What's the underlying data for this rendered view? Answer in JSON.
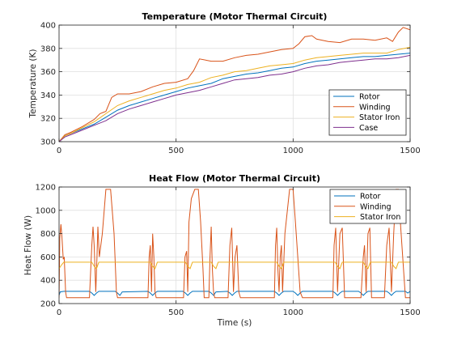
{
  "chart_data": [
    {
      "type": "line",
      "title": "Temperature (Motor Thermal Circuit)",
      "xlabel": "",
      "ylabel": "Temperature (K)",
      "xlim": [
        0,
        1500
      ],
      "ylim": [
        300,
        400
      ],
      "xticks": [
        0,
        500,
        1000,
        1500
      ],
      "yticks": [
        300,
        320,
        340,
        360,
        380,
        400
      ],
      "grid": true,
      "legend_position": "bottom-right",
      "series": [
        {
          "name": "Rotor",
          "color": "#0072BD",
          "x": [
            0,
            25,
            50,
            100,
            150,
            200,
            250,
            300,
            350,
            400,
            450,
            500,
            550,
            600,
            650,
            700,
            750,
            800,
            850,
            900,
            950,
            1000,
            1050,
            1100,
            1150,
            1200,
            1250,
            1300,
            1350,
            1400,
            1450,
            1500
          ],
          "y": [
            300,
            305,
            307,
            311,
            315,
            321,
            327,
            331,
            334,
            337,
            340,
            343,
            346,
            348,
            350,
            354,
            356,
            358,
            359,
            361,
            363,
            364,
            367,
            369,
            370,
            371,
            372,
            373,
            373,
            374,
            375,
            376
          ]
        },
        {
          "name": "Winding",
          "color": "#D95319",
          "x": [
            0,
            25,
            50,
            100,
            150,
            175,
            200,
            225,
            250,
            300,
            350,
            400,
            450,
            500,
            550,
            575,
            600,
            650,
            700,
            750,
            800,
            850,
            900,
            950,
            1000,
            1025,
            1050,
            1080,
            1100,
            1150,
            1200,
            1250,
            1300,
            1350,
            1400,
            1425,
            1450,
            1470,
            1500
          ],
          "y": [
            300,
            306,
            308,
            313,
            319,
            324,
            326,
            338,
            341,
            341,
            343,
            347,
            350,
            351,
            354,
            361,
            371,
            369,
            369,
            372,
            374,
            375,
            377,
            379,
            380,
            384,
            390,
            391,
            388,
            386,
            385,
            388,
            388,
            387,
            389,
            386,
            394,
            398,
            396
          ]
        },
        {
          "name": "Stator Iron",
          "color": "#EDB120",
          "x": [
            0,
            25,
            50,
            100,
            150,
            200,
            250,
            300,
            350,
            400,
            450,
            500,
            550,
            600,
            650,
            700,
            750,
            800,
            850,
            900,
            950,
            1000,
            1050,
            1100,
            1150,
            1200,
            1250,
            1300,
            1350,
            1400,
            1450,
            1500
          ],
          "y": [
            300,
            305,
            307,
            312,
            317,
            324,
            331,
            335,
            338,
            341,
            344,
            346,
            349,
            351,
            355,
            357,
            360,
            361,
            363,
            365,
            366,
            367,
            370,
            372,
            373,
            374,
            375,
            376,
            376,
            376,
            379,
            381
          ]
        },
        {
          "name": "Case",
          "color": "#7E2F8E",
          "x": [
            0,
            25,
            50,
            100,
            150,
            200,
            250,
            300,
            350,
            400,
            450,
            500,
            550,
            600,
            650,
            700,
            750,
            800,
            850,
            900,
            950,
            1000,
            1050,
            1100,
            1150,
            1200,
            1250,
            1300,
            1350,
            1400,
            1450,
            1500
          ],
          "y": [
            300,
            304,
            306,
            310,
            314,
            318,
            324,
            328,
            331,
            334,
            337,
            340,
            342,
            344,
            347,
            350,
            353,
            354,
            355,
            357,
            358,
            360,
            363,
            365,
            366,
            368,
            369,
            370,
            371,
            371,
            372,
            374
          ]
        }
      ]
    },
    {
      "type": "line",
      "title": "Heat Flow (Motor Thermal Circuit)",
      "xlabel": "Time (s)",
      "ylabel": "Heat Flow (W)",
      "xlim": [
        0,
        1500
      ],
      "ylim": [
        200,
        1200
      ],
      "xticks": [
        0,
        500,
        1000,
        1500
      ],
      "yticks": [
        200,
        400,
        600,
        800,
        1000,
        1200
      ],
      "grid": true,
      "legend_position": "top-right",
      "series": [
        {
          "name": "Rotor",
          "color": "#0072BD",
          "x": [
            0,
            5,
            20,
            30,
            130,
            140,
            150,
            160,
            170,
            240,
            250,
            260,
            270,
            380,
            390,
            400,
            410,
            420,
            530,
            540,
            550,
            560,
            570,
            640,
            650,
            660,
            670,
            720,
            730,
            740,
            750,
            760,
            920,
            930,
            940,
            950,
            960,
            1000,
            1010,
            1020,
            1030,
            1040,
            1170,
            1180,
            1190,
            1200,
            1210,
            1280,
            1290,
            1300,
            1310,
            1320,
            1400,
            1410,
            1420,
            1430,
            1440,
            1480,
            1490,
            1500
          ],
          "y": [
            270,
            300,
            305,
            305,
            305,
            290,
            270,
            290,
            305,
            305,
            290,
            270,
            300,
            305,
            290,
            270,
            290,
            305,
            305,
            290,
            270,
            290,
            305,
            305,
            290,
            270,
            300,
            305,
            290,
            270,
            290,
            305,
            305,
            290,
            270,
            290,
            305,
            305,
            290,
            270,
            290,
            305,
            305,
            290,
            270,
            290,
            305,
            305,
            290,
            270,
            290,
            305,
            305,
            290,
            270,
            290,
            305,
            305,
            290,
            305
          ]
        },
        {
          "name": "Winding",
          "color": "#D95319",
          "x": [
            0,
            3,
            8,
            12,
            18,
            22,
            28,
            32,
            130,
            140,
            145,
            150,
            157,
            162,
            166,
            172,
            185,
            200,
            220,
            235,
            245,
            250,
            255,
            260,
            380,
            385,
            390,
            395,
            400,
            405,
            410,
            415,
            425,
            532,
            538,
            545,
            550,
            555,
            565,
            580,
            595,
            605,
            615,
            620,
            640,
            645,
            650,
            655,
            660,
            665,
            675,
            722,
            730,
            738,
            745,
            752,
            760,
            768,
            775,
            920,
            925,
            930,
            935,
            940,
            945,
            950,
            955,
            965,
            985,
            1000,
            1010,
            1020,
            1030,
            1040,
            1050,
            1170,
            1175,
            1182,
            1190,
            1200,
            1210,
            1220,
            1290,
            1300,
            1305,
            1312,
            1320,
            1328,
            1335,
            1390,
            1400,
            1410,
            1420,
            1430,
            1440,
            1450,
            1460,
            1480,
            1490,
            1500
          ],
          "y": [
            250,
            760,
            880,
            780,
            580,
            600,
            300,
            250,
            250,
            700,
            860,
            700,
            300,
            600,
            860,
            600,
            800,
            1180,
            1180,
            800,
            300,
            250,
            250,
            250,
            250,
            600,
            700,
            300,
            800,
            600,
            300,
            250,
            250,
            250,
            600,
            650,
            300,
            900,
            1100,
            1180,
            1180,
            900,
            500,
            250,
            250,
            600,
            860,
            500,
            300,
            250,
            250,
            250,
            700,
            850,
            300,
            600,
            700,
            300,
            250,
            250,
            700,
            850,
            500,
            300,
            600,
            700,
            300,
            800,
            1180,
            1180,
            900,
            600,
            300,
            250,
            250,
            250,
            700,
            850,
            300,
            800,
            850,
            250,
            250,
            600,
            700,
            300,
            800,
            850,
            250,
            250,
            700,
            850,
            300,
            800,
            1180,
            1180,
            850,
            250,
            250,
            250
          ]
        },
        {
          "name": "Stator Iron",
          "color": "#EDB120",
          "x": [
            0,
            10,
            20,
            30,
            140,
            150,
            160,
            170,
            390,
            400,
            410,
            420,
            540,
            550,
            560,
            570,
            650,
            660,
            670,
            680,
            930,
            940,
            950,
            960,
            1180,
            1190,
            1200,
            1210,
            1300,
            1310,
            1320,
            1330,
            1420,
            1430,
            1440,
            1450,
            1500
          ],
          "y": [
            500,
            530,
            555,
            555,
            555,
            520,
            500,
            555,
            555,
            520,
            500,
            555,
            555,
            520,
            500,
            555,
            555,
            520,
            500,
            555,
            555,
            520,
            500,
            555,
            555,
            520,
            500,
            555,
            555,
            520,
            500,
            555,
            555,
            520,
            500,
            555,
            555
          ]
        }
      ]
    }
  ]
}
